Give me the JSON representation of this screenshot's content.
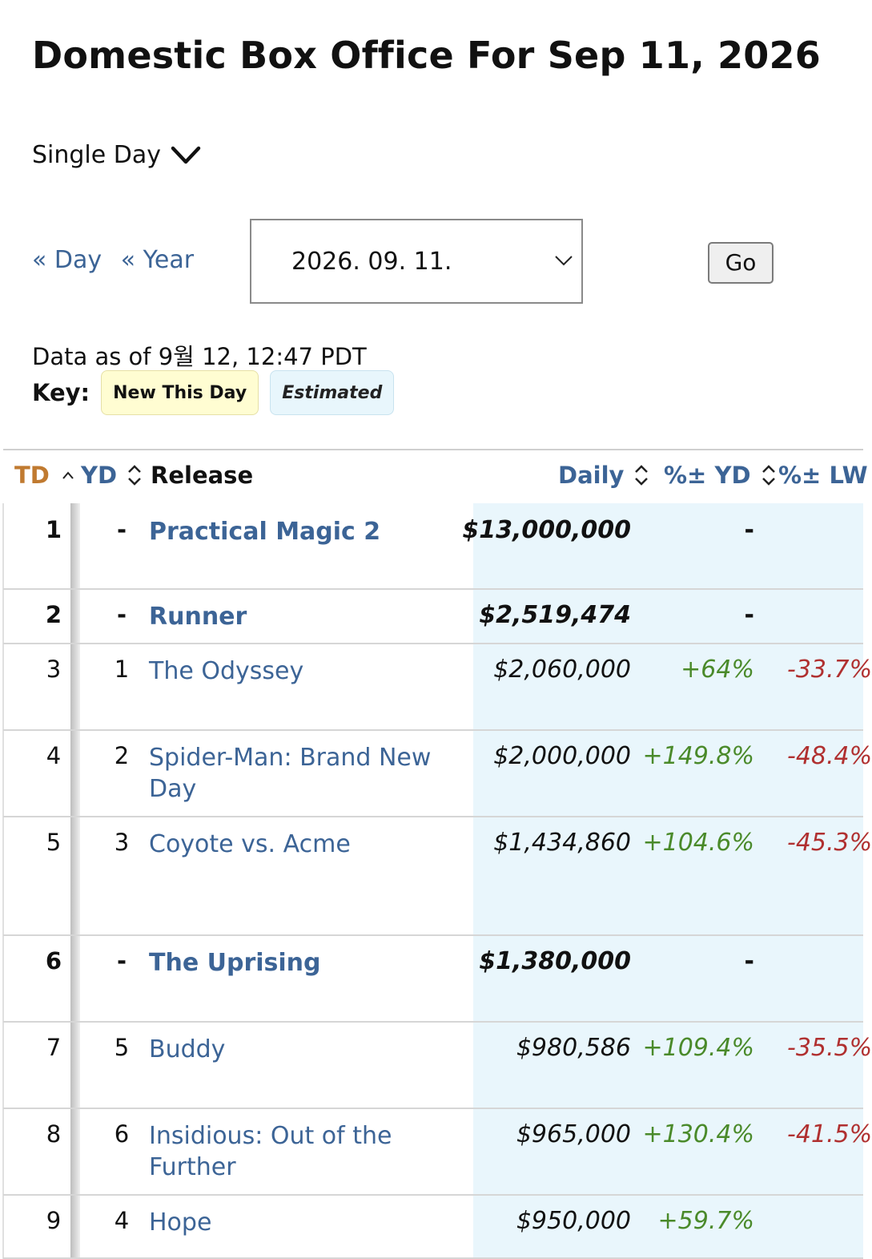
{
  "page": {
    "title": "Domestic Box Office For Sep 11, 2026"
  },
  "controls": {
    "mode_label": "Single Day",
    "prev_day": "« Day",
    "prev_year": "« Year",
    "date_value": "2026. 09. 11.",
    "go_label": "Go"
  },
  "meta": {
    "data_as_of": "Data as of 9월 12, 12:47 PDT",
    "key_label": "Key:",
    "key_new": "New This Day",
    "key_estimated": "Estimated"
  },
  "table": {
    "headers": {
      "td": "TD",
      "yd": "YD",
      "release": "Release",
      "daily": "Daily",
      "pct_yd": "%± YD",
      "pct_lw": "%± LW"
    },
    "rows": [
      {
        "td": "1",
        "yd": "-",
        "release": "Practical Magic 2",
        "daily": "$13,000,000",
        "pct_yd": "-",
        "pct_lw": "",
        "new": true
      },
      {
        "td": "2",
        "yd": "-",
        "release": "Runner",
        "daily": "$2,519,474",
        "pct_yd": "-",
        "pct_lw": "",
        "new": true
      },
      {
        "td": "3",
        "yd": "1",
        "release": "The Odyssey",
        "daily": "$2,060,000",
        "pct_yd": "+64%",
        "pct_lw": "-33.7%",
        "new": false
      },
      {
        "td": "4",
        "yd": "2",
        "release": "Spider-Man: Brand New Day",
        "daily": "$2,000,000",
        "pct_yd": "+149.8%",
        "pct_lw": "-48.4%",
        "new": false
      },
      {
        "td": "5",
        "yd": "3",
        "release": "Coyote vs. Acme",
        "daily": "$1,434,860",
        "pct_yd": "+104.6%",
        "pct_lw": "-45.3%",
        "new": false
      },
      {
        "td": "6",
        "yd": "-",
        "release": "The Uprising",
        "daily": "$1,380,000",
        "pct_yd": "-",
        "pct_lw": "",
        "new": true
      },
      {
        "td": "7",
        "yd": "5",
        "release": "Buddy",
        "daily": "$980,586",
        "pct_yd": "+109.4%",
        "pct_lw": "-35.5%",
        "new": false
      },
      {
        "td": "8",
        "yd": "6",
        "release": "Insidious: Out of the Further",
        "daily": "$965,000",
        "pct_yd": "+130.4%",
        "pct_lw": "-41.5%",
        "new": false
      },
      {
        "td": "9",
        "yd": "4",
        "release": "Hope",
        "daily": "$950,000",
        "pct_yd": "+59.7%",
        "pct_lw": "",
        "new": false
      }
    ]
  }
}
